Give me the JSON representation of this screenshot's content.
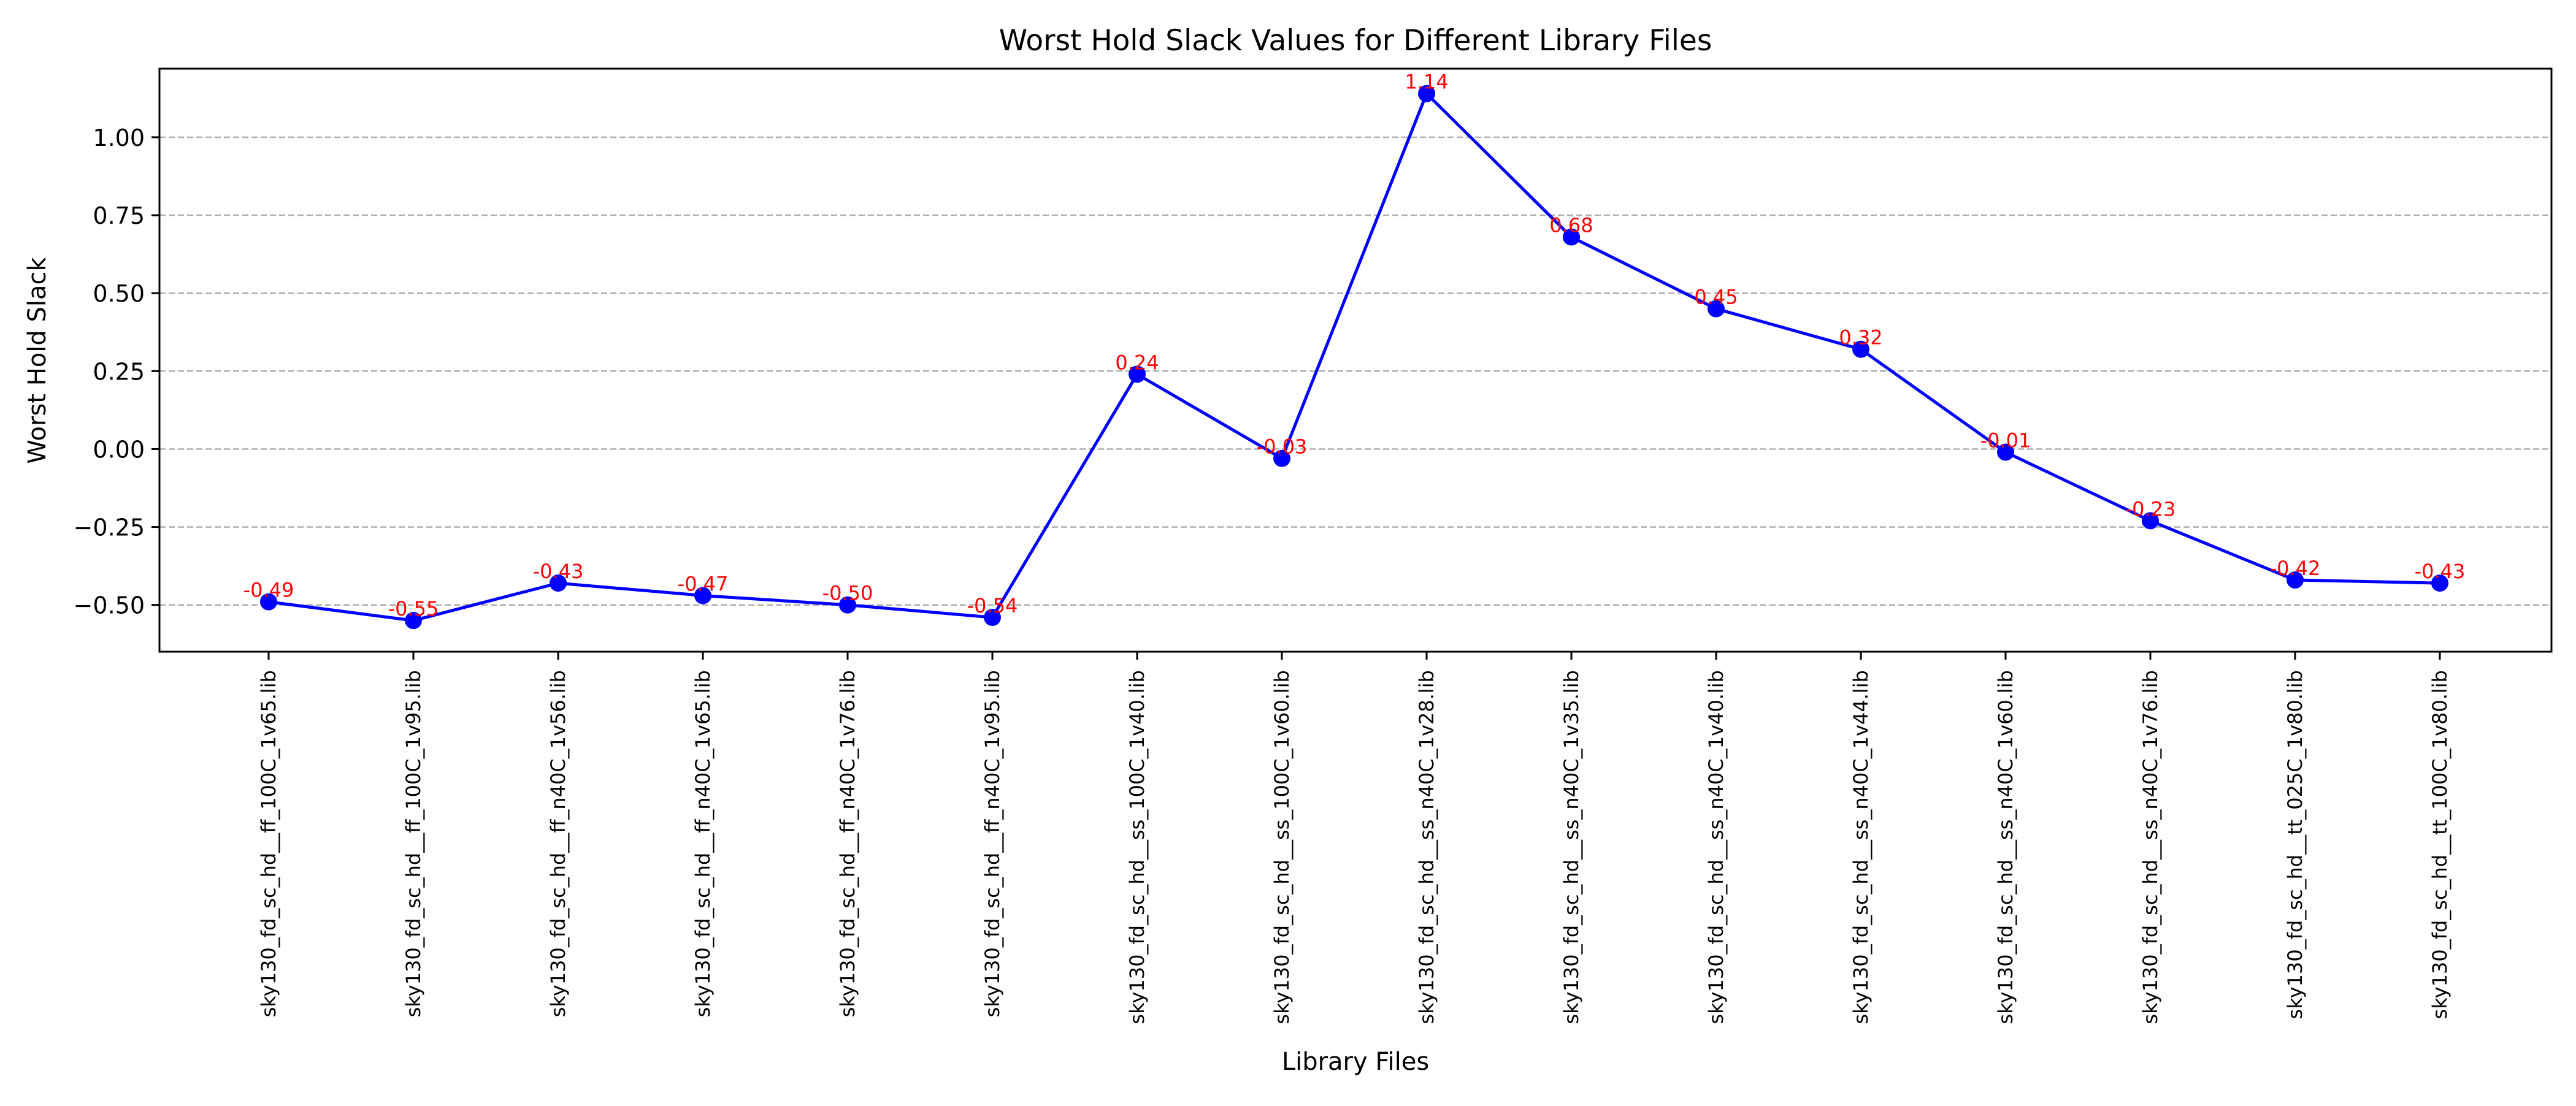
{
  "chart_data": {
    "type": "line",
    "title": "Worst Hold Slack Values for Different Library Files",
    "xlabel": "Library Files",
    "ylabel": "Worst Hold Slack",
    "ylim": [
      -0.65,
      1.22
    ],
    "yticks": [
      -0.5,
      -0.25,
      0.0,
      0.25,
      0.5,
      0.75,
      1.0
    ],
    "ytick_labels": [
      "−0.50",
      "−0.25",
      "0.00",
      "0.25",
      "0.50",
      "0.75",
      "1.00"
    ],
    "grid": "y-dashed",
    "line_color": "#0000ff",
    "label_color": "#ff0000",
    "categories": [
      "sky130_fd_sc_hd__ff_100C_1v65.lib",
      "sky130_fd_sc_hd__ff_100C_1v95.lib",
      "sky130_fd_sc_hd__ff_n40C_1v56.lib",
      "sky130_fd_sc_hd__ff_n40C_1v65.lib",
      "sky130_fd_sc_hd__ff_n40C_1v76.lib",
      "sky130_fd_sc_hd__ff_n40C_1v95.lib",
      "sky130_fd_sc_hd__ss_100C_1v40.lib",
      "sky130_fd_sc_hd__ss_100C_1v60.lib",
      "sky130_fd_sc_hd__ss_n40C_1v28.lib",
      "sky130_fd_sc_hd__ss_n40C_1v35.lib",
      "sky130_fd_sc_hd__ss_n40C_1v40.lib",
      "sky130_fd_sc_hd__ss_n40C_1v44.lib",
      "sky130_fd_sc_hd__ss_n40C_1v60.lib",
      "sky130_fd_sc_hd__ss_n40C_1v76.lib",
      "sky130_fd_sc_hd__tt_025C_1v80.lib",
      "sky130_fd_sc_hd__tt_100C_1v80.lib"
    ],
    "values": [
      -0.49,
      -0.55,
      -0.43,
      -0.47,
      -0.5,
      -0.54,
      0.24,
      -0.03,
      1.14,
      0.68,
      0.45,
      0.32,
      -0.01,
      -0.23,
      -0.42,
      -0.43
    ],
    "value_labels": [
      "-0.49",
      "-0.55",
      "-0.43",
      "-0.47",
      "-0.50",
      "-0.54",
      "0.24",
      "-0.03",
      "1.14",
      "0.68",
      "0.45",
      "0.32",
      "-0.01",
      "-0.23",
      "-0.42",
      "-0.43"
    ]
  }
}
